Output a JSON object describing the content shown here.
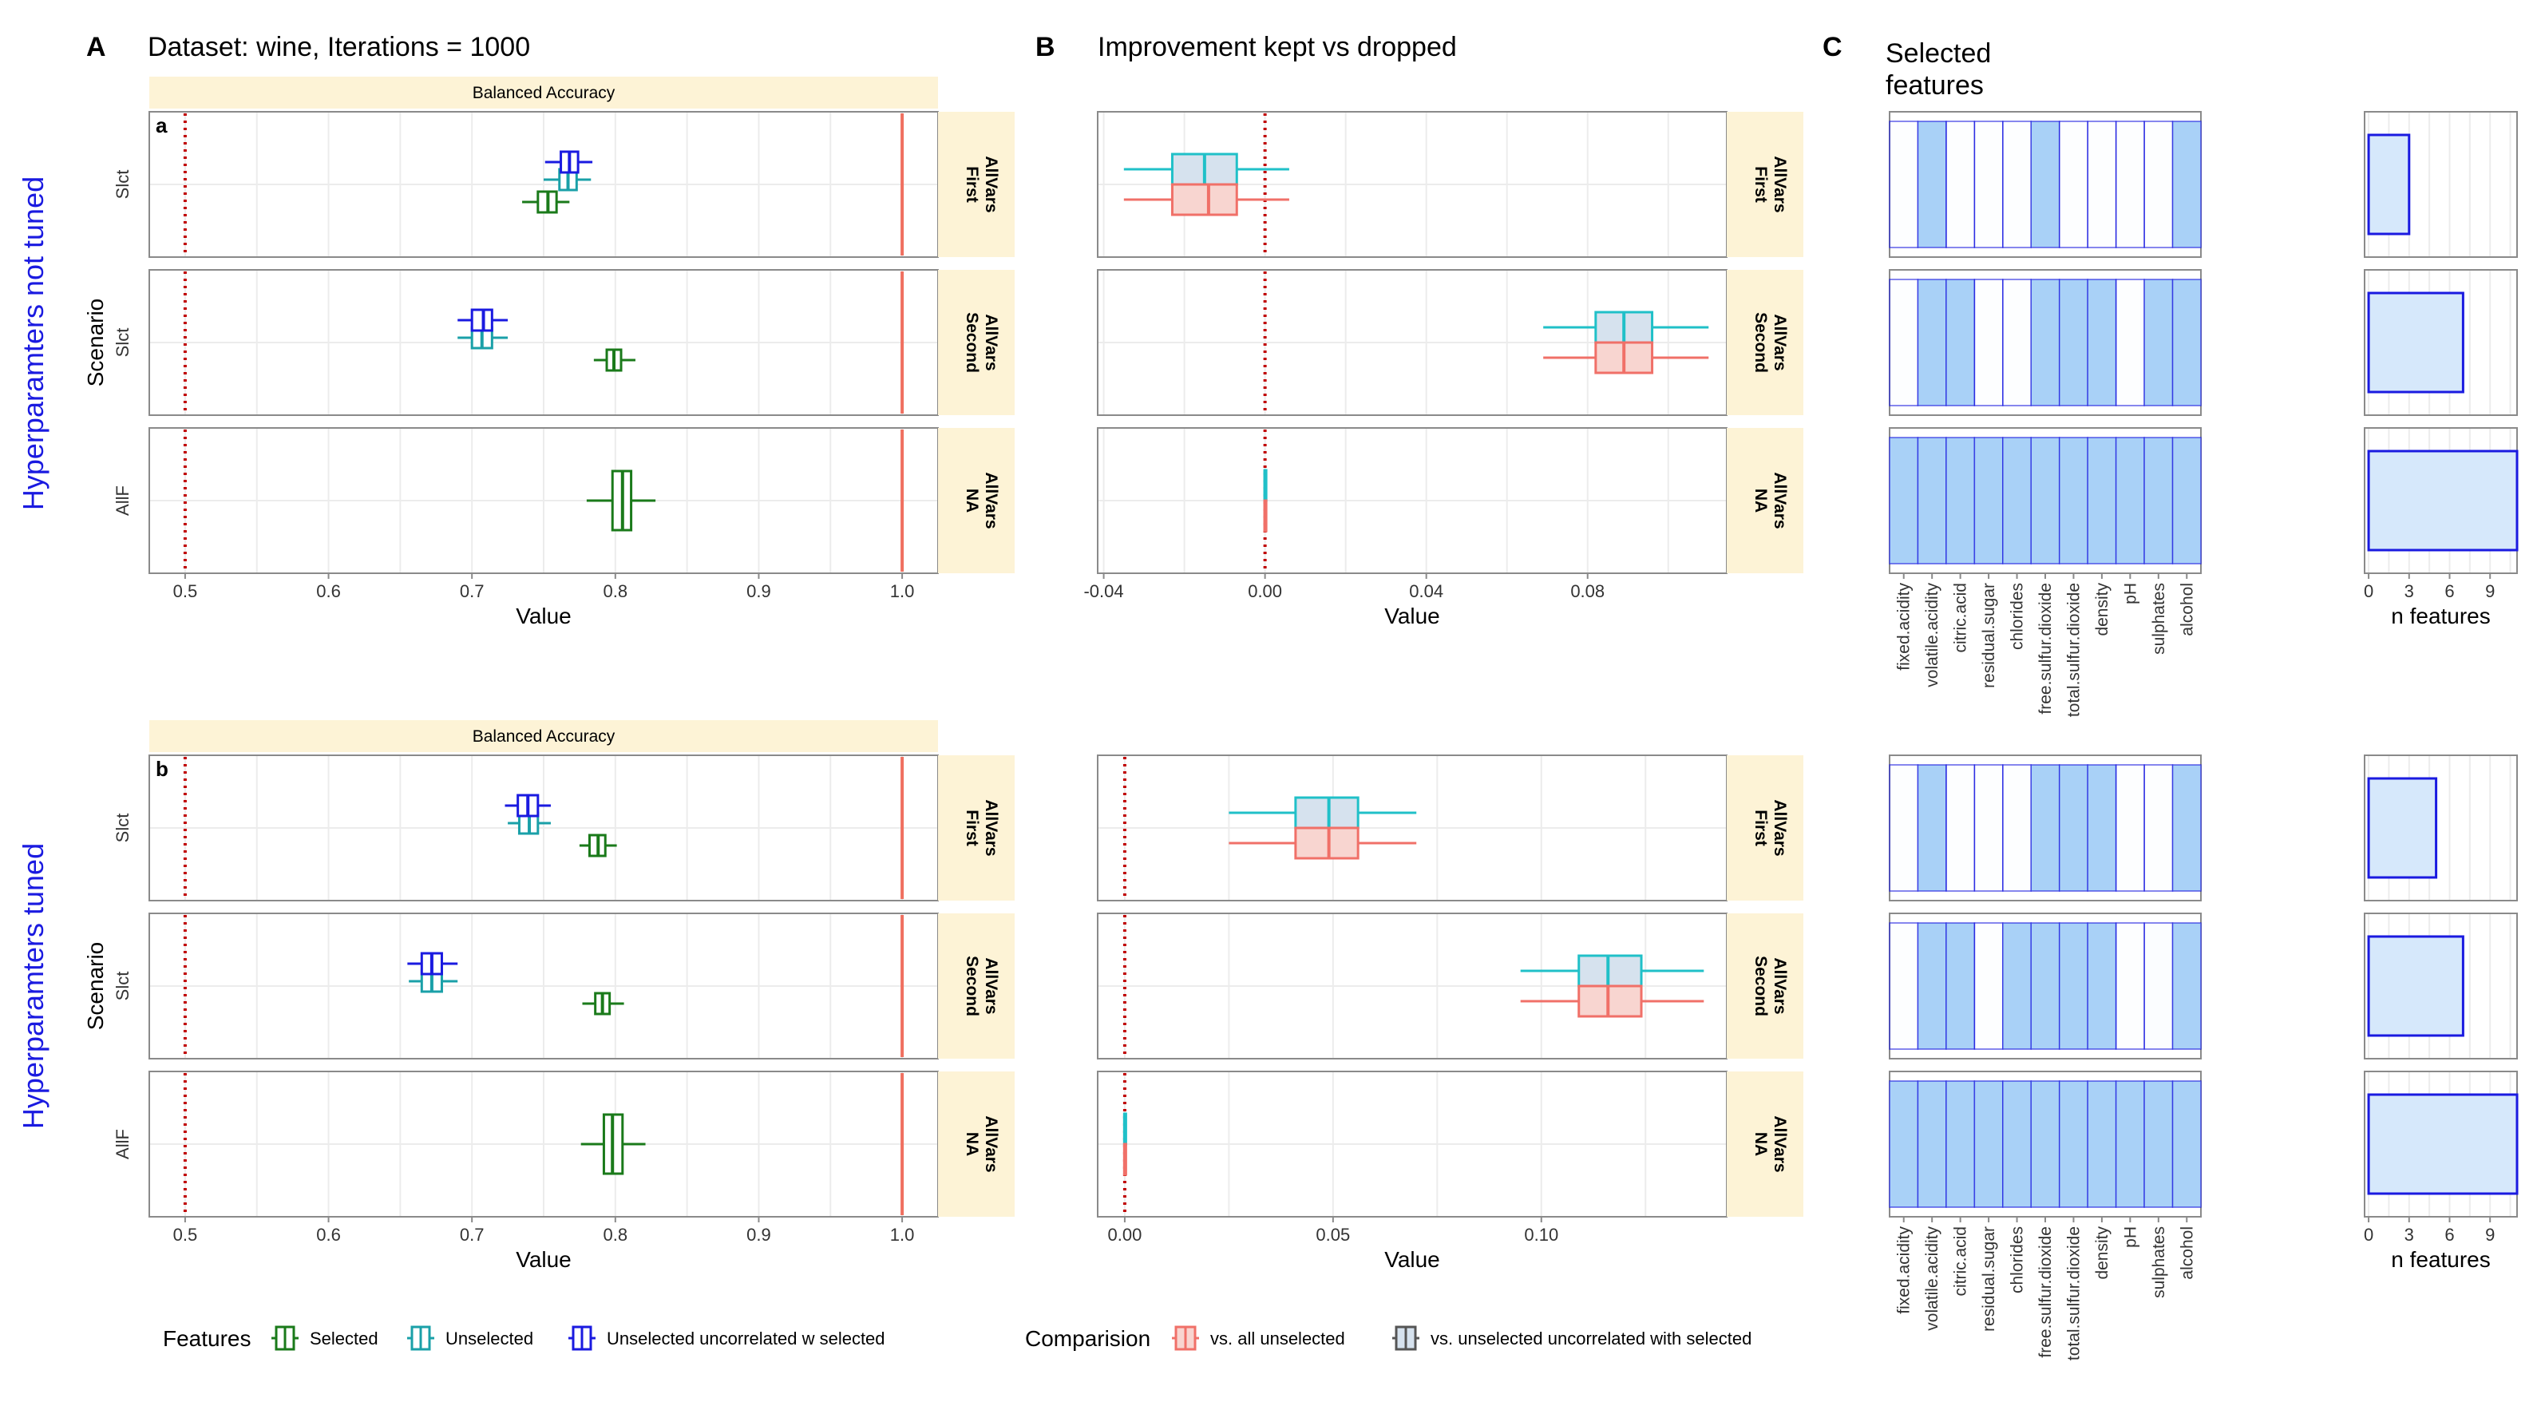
{
  "labels": {
    "panel_A": "A",
    "panel_B": "B",
    "panel_C": "C",
    "title_A": "Dataset: wine, Iterations = 1000",
    "title_B": "Improvement kept vs dropped",
    "title_C_line1": "Selected",
    "title_C_line2": "features",
    "strip_top": "Balanced Accuracy",
    "subpanel_a": "a",
    "subpanel_b": "b",
    "row_label_top": "Hyperparamters not tuned",
    "row_label_bottom": "Hyperparamters tuned",
    "scenario_label": "Scenario",
    "value_label": "Value",
    "n_features_label": "n features"
  },
  "rows": [
    {
      "ylabel": "Slct",
      "strip_line1": "AllVars",
      "strip_line2": "First"
    },
    {
      "ylabel": "Slct",
      "strip_line1": "AllVars",
      "strip_line2": "Second"
    },
    {
      "ylabel": "AllF",
      "strip_line1": "AllVars",
      "strip_line2": "NA"
    }
  ],
  "features": [
    "fixed.acidity",
    "volatile.acidity",
    "citric.acid",
    "residual.sugar",
    "chlorides",
    "free.sulfur.dioxide",
    "total.sulfur.dioxide",
    "density",
    "pH",
    "sulphates",
    "alcohol"
  ],
  "legend": {
    "features_title": "Features",
    "features_items": [
      "Selected",
      "Unselected",
      "Unselected uncorrelated w selected"
    ],
    "comparison_title": "Comparision",
    "comparison_items": [
      "vs. all unselected",
      "vs. unselected uncorrelated with selected"
    ]
  },
  "colors": {
    "selected": "#1a7a1a",
    "unselected": "#1aa0a8",
    "uncorrelated": "#1a1ae0",
    "vs_all": "#f07068",
    "vs_all_fill": "#f8d5d0",
    "vs_uncor": "#20c0c8",
    "vs_uncor_fill": "#d6e2ee",
    "strip": "#fdf3d6",
    "feature_fill": "#a9d1f7",
    "feature_line": "#1a1ae0",
    "nfeat_fill": "#d6e8fb",
    "ref_dotted": "#c00000",
    "ref_solid": "#f07060",
    "row_label": "#1a1ae0"
  },
  "chart_data": [
    {
      "id": "A",
      "type": "boxplot",
      "title": "Balanced Accuracy",
      "xlabel": "Value",
      "xlim": [
        0.475,
        1.025
      ],
      "xticks": [
        0.5,
        0.6,
        0.7,
        0.8,
        0.9,
        1.0
      ],
      "xtick_labels": [
        "0.5",
        "0.6",
        "0.7",
        "0.8",
        "0.9",
        "1.0"
      ],
      "ref_lines": {
        "dotted": 0.5,
        "solid": 1.0
      },
      "groups": [
        {
          "tuned": false,
          "rows": [
            {
              "Selected": {
                "min": 0.735,
                "q1": 0.746,
                "med": 0.753,
                "q3": 0.759,
                "max": 0.768
              },
              "Unselected": {
                "min": 0.75,
                "q1": 0.761,
                "med": 0.767,
                "q3": 0.773,
                "max": 0.783
              },
              "Unselected uncorrelated w selected": {
                "min": 0.751,
                "q1": 0.762,
                "med": 0.768,
                "q3": 0.774,
                "max": 0.784
              }
            },
            {
              "Selected": {
                "min": 0.785,
                "q1": 0.794,
                "med": 0.799,
                "q3": 0.804,
                "max": 0.814
              },
              "Unselected": {
                "min": 0.69,
                "q1": 0.7,
                "med": 0.707,
                "q3": 0.714,
                "max": 0.725
              },
              "Unselected uncorrelated w selected": {
                "min": 0.69,
                "q1": 0.7,
                "med": 0.708,
                "q3": 0.714,
                "max": 0.725
              }
            },
            {
              "Selected": {
                "min": 0.78,
                "q1": 0.798,
                "med": 0.805,
                "q3": 0.811,
                "max": 0.828
              }
            }
          ]
        },
        {
          "tuned": true,
          "rows": [
            {
              "Selected": {
                "min": 0.775,
                "q1": 0.782,
                "med": 0.788,
                "q3": 0.793,
                "max": 0.801
              },
              "Unselected": {
                "min": 0.725,
                "q1": 0.733,
                "med": 0.74,
                "q3": 0.746,
                "max": 0.755
              },
              "Unselected uncorrelated w selected": {
                "min": 0.723,
                "q1": 0.732,
                "med": 0.739,
                "q3": 0.746,
                "max": 0.755
              }
            },
            {
              "Selected": {
                "min": 0.777,
                "q1": 0.786,
                "med": 0.791,
                "q3": 0.796,
                "max": 0.806
              },
              "Unselected": {
                "min": 0.656,
                "q1": 0.665,
                "med": 0.672,
                "q3": 0.679,
                "max": 0.69
              },
              "Unselected uncorrelated w selected": {
                "min": 0.655,
                "q1": 0.665,
                "med": 0.672,
                "q3": 0.679,
                "max": 0.69
              }
            },
            {
              "Selected": {
                "min": 0.776,
                "q1": 0.792,
                "med": 0.798,
                "q3": 0.805,
                "max": 0.821
              }
            }
          ]
        }
      ]
    },
    {
      "id": "B",
      "type": "boxplot",
      "title": "Improvement kept vs dropped",
      "xlabel": "Value",
      "groups": [
        {
          "tuned": false,
          "xlim": [
            -0.0415,
            0.1145
          ],
          "xticks": [
            -0.04,
            0.0,
            0.04,
            0.08
          ],
          "xtick_labels": [
            "-0.04",
            "0.00",
            "0.04",
            "0.08"
          ],
          "ref_line": 0.0,
          "rows": [
            {
              "vs. all unselected": {
                "min": -0.035,
                "q1": -0.023,
                "med": -0.014,
                "q3": -0.007,
                "max": 0.006
              },
              "vs. unselected uncorrelated with selected": {
                "min": -0.035,
                "q1": -0.023,
                "med": -0.015,
                "q3": -0.007,
                "max": 0.006
              }
            },
            {
              "vs. all unselected": {
                "min": 0.069,
                "q1": 0.082,
                "med": 0.089,
                "q3": 0.096,
                "max": 0.11
              },
              "vs. unselected uncorrelated with selected": {
                "min": 0.069,
                "q1": 0.082,
                "med": 0.089,
                "q3": 0.096,
                "max": 0.11
              }
            },
            {
              "vs. all unselected": {
                "min": -0.0003,
                "q1": -0.0001,
                "med": 0.0,
                "q3": 0.0001,
                "max": 0.0003
              },
              "vs. unselected uncorrelated with selected": {
                "min": -0.0003,
                "q1": -0.0001,
                "med": 0.0,
                "q3": 0.0001,
                "max": 0.0003
              }
            }
          ]
        },
        {
          "tuned": true,
          "xlim": [
            -0.0065,
            0.1445
          ],
          "xticks": [
            0.0,
            0.05,
            0.1
          ],
          "xtick_labels": [
            "0.00",
            "0.05",
            "0.10"
          ],
          "ref_line": 0.0,
          "rows": [
            {
              "vs. all unselected": {
                "min": 0.025,
                "q1": 0.041,
                "med": 0.049,
                "q3": 0.056,
                "max": 0.07
              },
              "vs. unselected uncorrelated with selected": {
                "min": 0.025,
                "q1": 0.041,
                "med": 0.049,
                "q3": 0.056,
                "max": 0.07
              }
            },
            {
              "vs. all unselected": {
                "min": 0.095,
                "q1": 0.109,
                "med": 0.116,
                "q3": 0.124,
                "max": 0.139
              },
              "vs. unselected uncorrelated with selected": {
                "min": 0.095,
                "q1": 0.109,
                "med": 0.116,
                "q3": 0.124,
                "max": 0.139
              }
            },
            {
              "vs. all unselected": {
                "min": -0.0003,
                "q1": -0.0001,
                "med": 0.0,
                "q3": 0.0001,
                "max": 0.0003
              },
              "vs. unselected uncorrelated with selected": {
                "min": -0.0003,
                "q1": -0.0001,
                "med": 0.0,
                "q3": 0.0001,
                "max": 0.0003
              }
            }
          ]
        }
      ]
    },
    {
      "id": "C-features",
      "type": "heatmap",
      "title": "Selected features",
      "categories": [
        "fixed.acidity",
        "volatile.acidity",
        "citric.acid",
        "residual.sugar",
        "chlorides",
        "free.sulfur.dioxide",
        "total.sulfur.dioxide",
        "density",
        "pH",
        "sulphates",
        "alcohol"
      ],
      "groups": [
        {
          "tuned": false,
          "rows": [
            [
              0.02,
              1,
              0.02,
              0.02,
              0.02,
              1,
              0.02,
              0.02,
              0.02,
              0.02,
              1
            ],
            [
              0.02,
              1,
              1,
              0.02,
              0.02,
              1,
              1,
              1,
              0.02,
              1,
              1
            ],
            [
              1,
              1,
              1,
              1,
              1,
              1,
              1,
              1,
              1,
              1,
              1
            ]
          ]
        },
        {
          "tuned": true,
          "rows": [
            [
              0.02,
              1,
              0.02,
              0.02,
              0.02,
              1,
              1,
              1,
              0.02,
              0.02,
              1
            ],
            [
              0.02,
              1,
              1,
              0.02,
              1,
              1,
              1,
              1,
              0.02,
              0.05,
              1
            ],
            [
              1,
              1,
              1,
              1,
              1,
              1,
              1,
              1,
              1,
              1,
              1
            ]
          ]
        }
      ]
    },
    {
      "id": "C-nfeatures",
      "type": "bar",
      "xlabel": "n features",
      "xlim": [
        -0.3,
        11
      ],
      "xticks": [
        0,
        3,
        6,
        9
      ],
      "xtick_labels": [
        "0",
        "3",
        "6",
        "9"
      ],
      "groups": [
        {
          "tuned": false,
          "values": [
            3,
            7,
            11
          ]
        },
        {
          "tuned": true,
          "values": [
            5,
            7,
            11
          ]
        }
      ]
    }
  ]
}
